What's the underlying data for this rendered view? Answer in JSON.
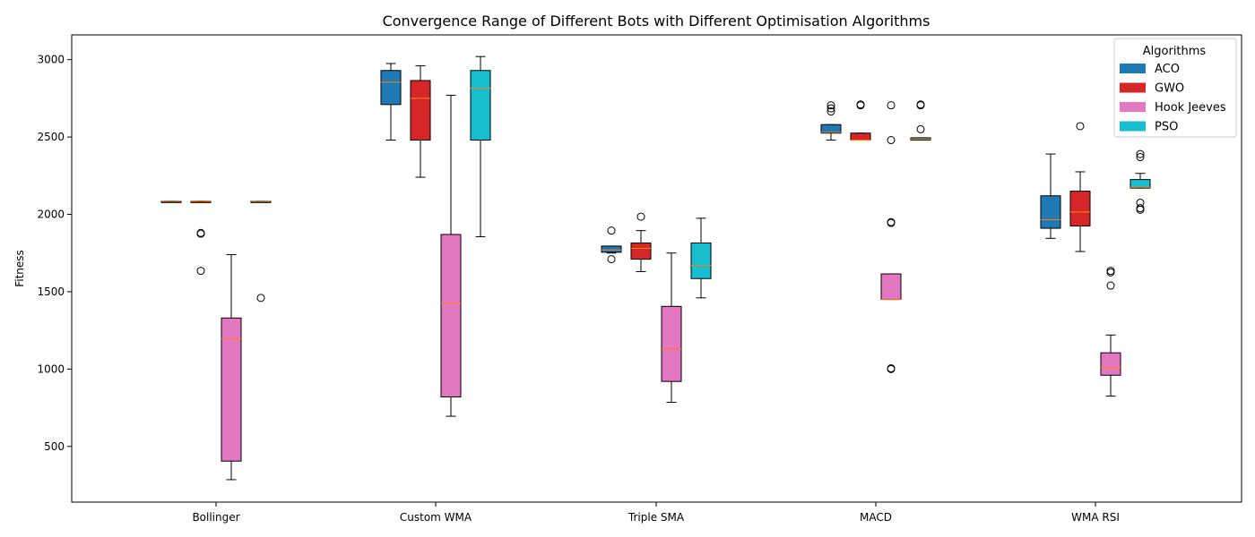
{
  "chart_data": {
    "type": "box",
    "title": "Convergence Range of Different Bots with Different Optimisation Algorithms",
    "xlabel": "",
    "ylabel": "Fitness",
    "ylim": [
      140,
      3160
    ],
    "yticks": [
      500,
      1000,
      1500,
      2000,
      2500,
      3000
    ],
    "categories": [
      "Bollinger",
      "Custom WMA",
      "Triple SMA",
      "MACD",
      "WMA RSI"
    ],
    "legend": {
      "title": "Algorithms",
      "position": "top-right",
      "items": [
        {
          "label": "ACO",
          "color": "#1f77b4"
        },
        {
          "label": "GWO",
          "color": "#d62728"
        },
        {
          "label": "Hook Jeeves",
          "color": "#e377c2"
        },
        {
          "label": "PSO",
          "color": "#17becf"
        }
      ]
    },
    "median_color": "#ff7f0e",
    "series": [
      {
        "name": "ACO",
        "color": "#1f77b4",
        "boxes": [
          {
            "whislo": 2085,
            "q1": 2085,
            "med": 2085,
            "q3": 2085,
            "whishi": 2085,
            "fliers": []
          },
          {
            "whislo": 2480,
            "q1": 2710,
            "med": 2855,
            "q3": 2930,
            "whishi": 2975,
            "fliers": []
          },
          {
            "whislo": 1750,
            "q1": 1755,
            "med": 1770,
            "q3": 1795,
            "whishi": 1795,
            "fliers": [
              1710,
              1895
            ]
          },
          {
            "whislo": 2480,
            "q1": 2525,
            "med": 2530,
            "q3": 2580,
            "whishi": 2580,
            "fliers": [
              2665,
              2685,
              2705
            ]
          },
          {
            "whislo": 1845,
            "q1": 1910,
            "med": 1965,
            "q3": 2120,
            "whishi": 2390,
            "fliers": []
          }
        ]
      },
      {
        "name": "GWO",
        "color": "#d62728",
        "boxes": [
          {
            "whislo": 2085,
            "q1": 2085,
            "med": 2085,
            "q3": 2085,
            "whishi": 2085,
            "fliers": [
              1880,
              1875,
              1635
            ]
          },
          {
            "whislo": 2240,
            "q1": 2480,
            "med": 2750,
            "q3": 2865,
            "whishi": 2960,
            "fliers": []
          },
          {
            "whislo": 1630,
            "q1": 1710,
            "med": 1780,
            "q3": 1815,
            "whishi": 1895,
            "fliers": [
              1985
            ]
          },
          {
            "whislo": 2480,
            "q1": 2480,
            "med": 2480,
            "q3": 2525,
            "whishi": 2525,
            "fliers": [
              2705,
              2710
            ]
          },
          {
            "whislo": 1760,
            "q1": 1925,
            "med": 2015,
            "q3": 2150,
            "whishi": 2275,
            "fliers": [
              2570
            ]
          }
        ]
      },
      {
        "name": "Hook Jeeves",
        "color": "#e377c2",
        "boxes": [
          {
            "whislo": 285,
            "q1": 405,
            "med": 1195,
            "q3": 1330,
            "whishi": 1740,
            "fliers": []
          },
          {
            "whislo": 695,
            "q1": 820,
            "med": 1425,
            "q3": 1870,
            "whishi": 2770,
            "fliers": []
          },
          {
            "whislo": 785,
            "q1": 920,
            "med": 1130,
            "q3": 1405,
            "whishi": 1750,
            "fliers": []
          },
          {
            "whislo": 1450,
            "q1": 1450,
            "med": 1450,
            "q3": 1615,
            "whishi": 1615,
            "fliers": [
              1000,
              1005,
              1945,
              1950,
              2480,
              2705
            ]
          },
          {
            "whislo": 825,
            "q1": 960,
            "med": 1010,
            "q3": 1105,
            "whishi": 1220,
            "fliers": [
              1540,
              1625,
              1635
            ]
          }
        ]
      },
      {
        "name": "PSO",
        "color": "#17becf",
        "boxes": [
          {
            "whislo": 2085,
            "q1": 2085,
            "med": 2085,
            "q3": 2085,
            "whishi": 2085,
            "fliers": [
              1460
            ]
          },
          {
            "whislo": 1855,
            "q1": 2480,
            "med": 2815,
            "q3": 2930,
            "whishi": 3020,
            "fliers": []
          },
          {
            "whislo": 1460,
            "q1": 1585,
            "med": 1670,
            "q3": 1815,
            "whishi": 1975,
            "fliers": []
          },
          {
            "whislo": 2480,
            "q1": 2480,
            "med": 2485,
            "q3": 2495,
            "whishi": 2495,
            "fliers": [
              2550,
              2705,
              2710
            ]
          },
          {
            "whislo": 2170,
            "q1": 2170,
            "med": 2175,
            "q3": 2225,
            "whishi": 2265,
            "fliers": [
              2030,
              2040,
              2075,
              2370,
              2390
            ]
          }
        ]
      }
    ]
  }
}
